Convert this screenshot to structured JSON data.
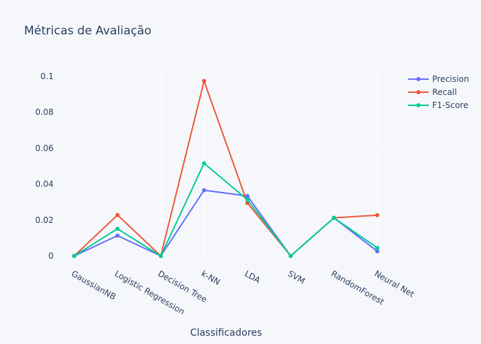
{
  "chart_data": {
    "type": "line",
    "title": "Métricas de Avaliação",
    "xlabel": "Classificadores",
    "ylabel": "",
    "categories": [
      "GaussianNB",
      "Logistic Regression",
      "Decision Tree",
      "k-NN",
      "LDA",
      "SVM",
      "RandomForest",
      "Neural Net"
    ],
    "ylim": [
      0,
      0.1
    ],
    "yticks": [
      0,
      0.02,
      0.04,
      0.06,
      0.08,
      0.1
    ],
    "ytick_labels": [
      "0",
      "0.02",
      "0.04",
      "0.06",
      "0.08",
      "0.1"
    ],
    "grid": true,
    "legend_position": "top-right",
    "series": [
      {
        "name": "Precision",
        "color": "#636efa",
        "values": [
          0,
          0.0113,
          0,
          0.0366,
          0.0334,
          0,
          0.0212,
          0.0026
        ]
      },
      {
        "name": "Recall",
        "color": "#ef553b",
        "values": [
          0,
          0.0228,
          0,
          0.0974,
          0.0295,
          0,
          0.0212,
          0.0227
        ]
      },
      {
        "name": "F1-Score",
        "color": "#00cc96",
        "values": [
          0,
          0.0151,
          0,
          0.0516,
          0.0313,
          0,
          0.0212,
          0.0045
        ]
      }
    ]
  }
}
